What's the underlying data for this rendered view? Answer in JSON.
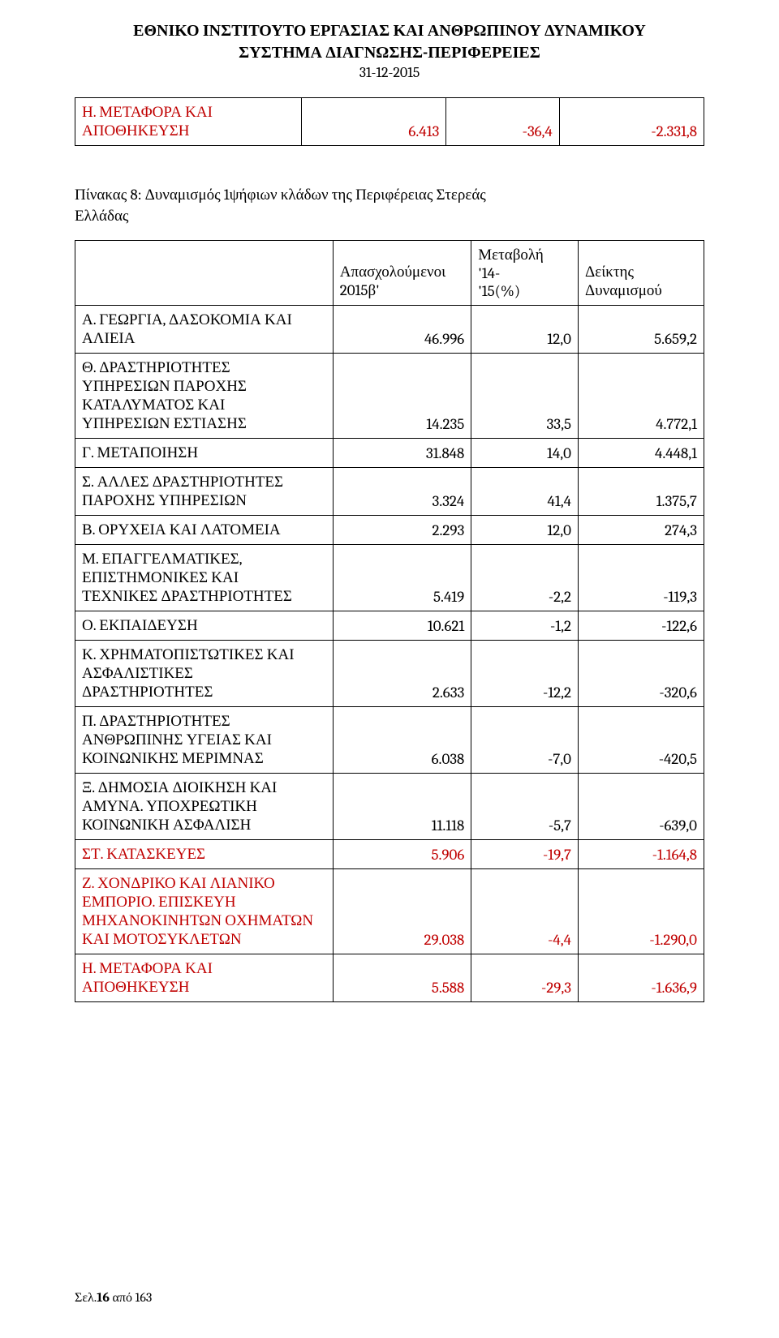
{
  "colors": {
    "text": "#000000",
    "accent_red": "#c00000",
    "border": "#000000",
    "background": "#ffffff"
  },
  "header": {
    "line1": "ΕΘΝΙΚΟ ΙΝΣΤΙΤΟΥΤΟ ΕΡΓΑΣΙΑΣ ΚΑΙ ΑΝΘΡΩΠΙΝΟΥ ΔΥΝΑΜΙΚΟΥ",
    "line2": "ΣΥΣΤΗΜΑ ΔΙΑΓΝΩΣΗΣ-ΠΕΡΙΦΕΡΕΙΕΣ",
    "line3": "31-12-2015"
  },
  "top_table": {
    "rows": [
      {
        "label_l1": "Η.  ΜΕΤΑΦΟΡΑ ΚΑΙ",
        "label_l2": "ΑΠΟΘΗΚΕΥΣΗ",
        "v1": "6.413",
        "v2": "-36,4",
        "v3": "-2.331,8",
        "highlight": true
      }
    ]
  },
  "caption": {
    "l1": "Πίνακας 8: Δυναμισμός 1ψήφιων κλάδων της Περιφέρειας Στερεάς",
    "l2": "Ελλάδας"
  },
  "main_table": {
    "header": {
      "blank": "",
      "col1_l1": "Απασχολούμενοι",
      "col1_l2": "2015β'",
      "col2_l1": "Μεταβολή",
      "col2_l2": "'14-",
      "col2_l3": "'15(%)",
      "col3_l1": "Δείκτης",
      "col3_l2": "Δυναμισμού"
    },
    "rows": [
      {
        "lines": [
          "Α. ΓΕΩΡΓΙΑ, ΔΑΣΟΚΟΜΙΑ ΚΑΙ",
          "ΑΛΙΕΙΑ"
        ],
        "v1": "46.996",
        "v2": "12,0",
        "v3": "5.659,2",
        "highlight": false
      },
      {
        "lines": [
          "Θ. ΔΡΑΣΤΗΡΙΟΤΗΤΕΣ",
          "ΥΠΗΡΕΣΙΩΝ ΠΑΡΟΧΗΣ",
          "ΚΑΤΑΛΥΜΑΤΟΣ ΚΑΙ",
          "ΥΠΗΡΕΣΙΩΝ ΕΣΤΙΑΣΗΣ"
        ],
        "v1": "14.235",
        "v2": "33,5",
        "v3": "4.772,1",
        "highlight": false
      },
      {
        "lines": [
          "Γ. ΜΕΤΑΠΟΙΗΣΗ"
        ],
        "v1": "31.848",
        "v2": "14,0",
        "v3": "4.448,1",
        "highlight": false
      },
      {
        "lines": [
          "Σ. ΑΛΛΕΣ ΔΡΑΣΤΗΡΙΟΤΗΤΕΣ",
          "ΠΑΡΟΧΗΣ ΥΠΗΡΕΣΙΩΝ"
        ],
        "v1": "3.324",
        "v2": "41,4",
        "v3": "1.375,7",
        "highlight": false
      },
      {
        "lines": [
          "Β. ΟΡΥΧΕΙΑ ΚΑΙ ΛΑΤΟΜΕΙΑ"
        ],
        "v1": "2.293",
        "v2": "12,0",
        "v3": "274,3",
        "highlight": false
      },
      {
        "lines": [
          "Μ. ΕΠΑΓΓΕΛΜΑΤΙΚΕΣ,",
          "ΕΠΙΣΤΗΜΟΝΙΚΕΣ  ΚΑΙ",
          "ΤΕΧΝΙΚΕΣ ΔΡΑΣΤΗΡΙΟΤΗΤΕΣ"
        ],
        "v1": "5.419",
        "v2": "-2,2",
        "v3": "-119,3",
        "highlight": false
      },
      {
        "lines": [
          "Ο. ΕΚΠΑΙΔΕΥΣΗ"
        ],
        "v1": "10.621",
        "v2": "-1,2",
        "v3": "-122,6",
        "highlight": false
      },
      {
        "lines": [
          "Κ. ΧΡΗΜΑΤΟΠΙΣΤΩΤΙΚΕΣ ΚΑΙ",
          "ΑΣΦΑΛΙΣΤΙΚΕΣ",
          "ΔΡΑΣΤΗΡΙΟΤΗΤΕΣ"
        ],
        "v1": "2.633",
        "v2": "-12,2",
        "v3": "-320,6",
        "highlight": false
      },
      {
        "lines": [
          "Π. ΔΡΑΣΤΗΡΙΟΤΗΤΕΣ",
          "ΑΝΘΡΩΠΙΝΗΣ ΥΓΕΙΑΣ ΚΑΙ",
          "ΚΟΙΝΩΝΙΚΗΣ ΜΕΡΙΜΝΑΣ"
        ],
        "v1": "6.038",
        "v2": "-7,0",
        "v3": "-420,5",
        "highlight": false
      },
      {
        "lines": [
          "Ξ. ΔΗΜΟΣΙΑ ΔΙΟΙΚΗΣΗ ΚΑΙ",
          "ΑΜΥΝΑ. ΥΠΟΧΡΕΩΤΙΚΗ",
          "ΚΟΙΝΩΝΙΚΗ ΑΣΦΑΛΙΣΗ"
        ],
        "v1": "11.118",
        "v2": "-5,7",
        "v3": "-639,0",
        "highlight": false
      },
      {
        "lines": [
          "ΣΤ. ΚΑΤΑΣΚΕΥΕΣ"
        ],
        "v1": "5.906",
        "v2": "-19,7",
        "v3": "-1.164,8",
        "highlight": true
      },
      {
        "lines": [
          "Ζ. ΧΟΝΔΡΙΚΟ  ΚΑΙ  ΛΙΑΝΙΚΟ",
          "ΕΜΠΟΡΙΟ. ΕΠΙΣΚΕΥΗ",
          "ΜΗΧΑΝΟΚΙΝΗΤΩΝ  ΟΧΗΜΑΤΩΝ",
          "ΚΑΙ  ΜΟΤΟΣΥΚΛΕΤΩΝ"
        ],
        "v1": "29.038",
        "v2": "-4,4",
        "v3": "-1.290,0",
        "highlight": true
      },
      {
        "lines": [
          "Η.  ΜΕΤΑΦΟΡΑ ΚΑΙ",
          "ΑΠΟΘΗΚΕΥΣΗ"
        ],
        "v1": "5.588",
        "v2": "-29,3",
        "v3": "-1.636,9",
        "highlight": true
      }
    ]
  },
  "footer": {
    "prefix": "Σελ.",
    "page": "16",
    "suffix": " από 163"
  }
}
